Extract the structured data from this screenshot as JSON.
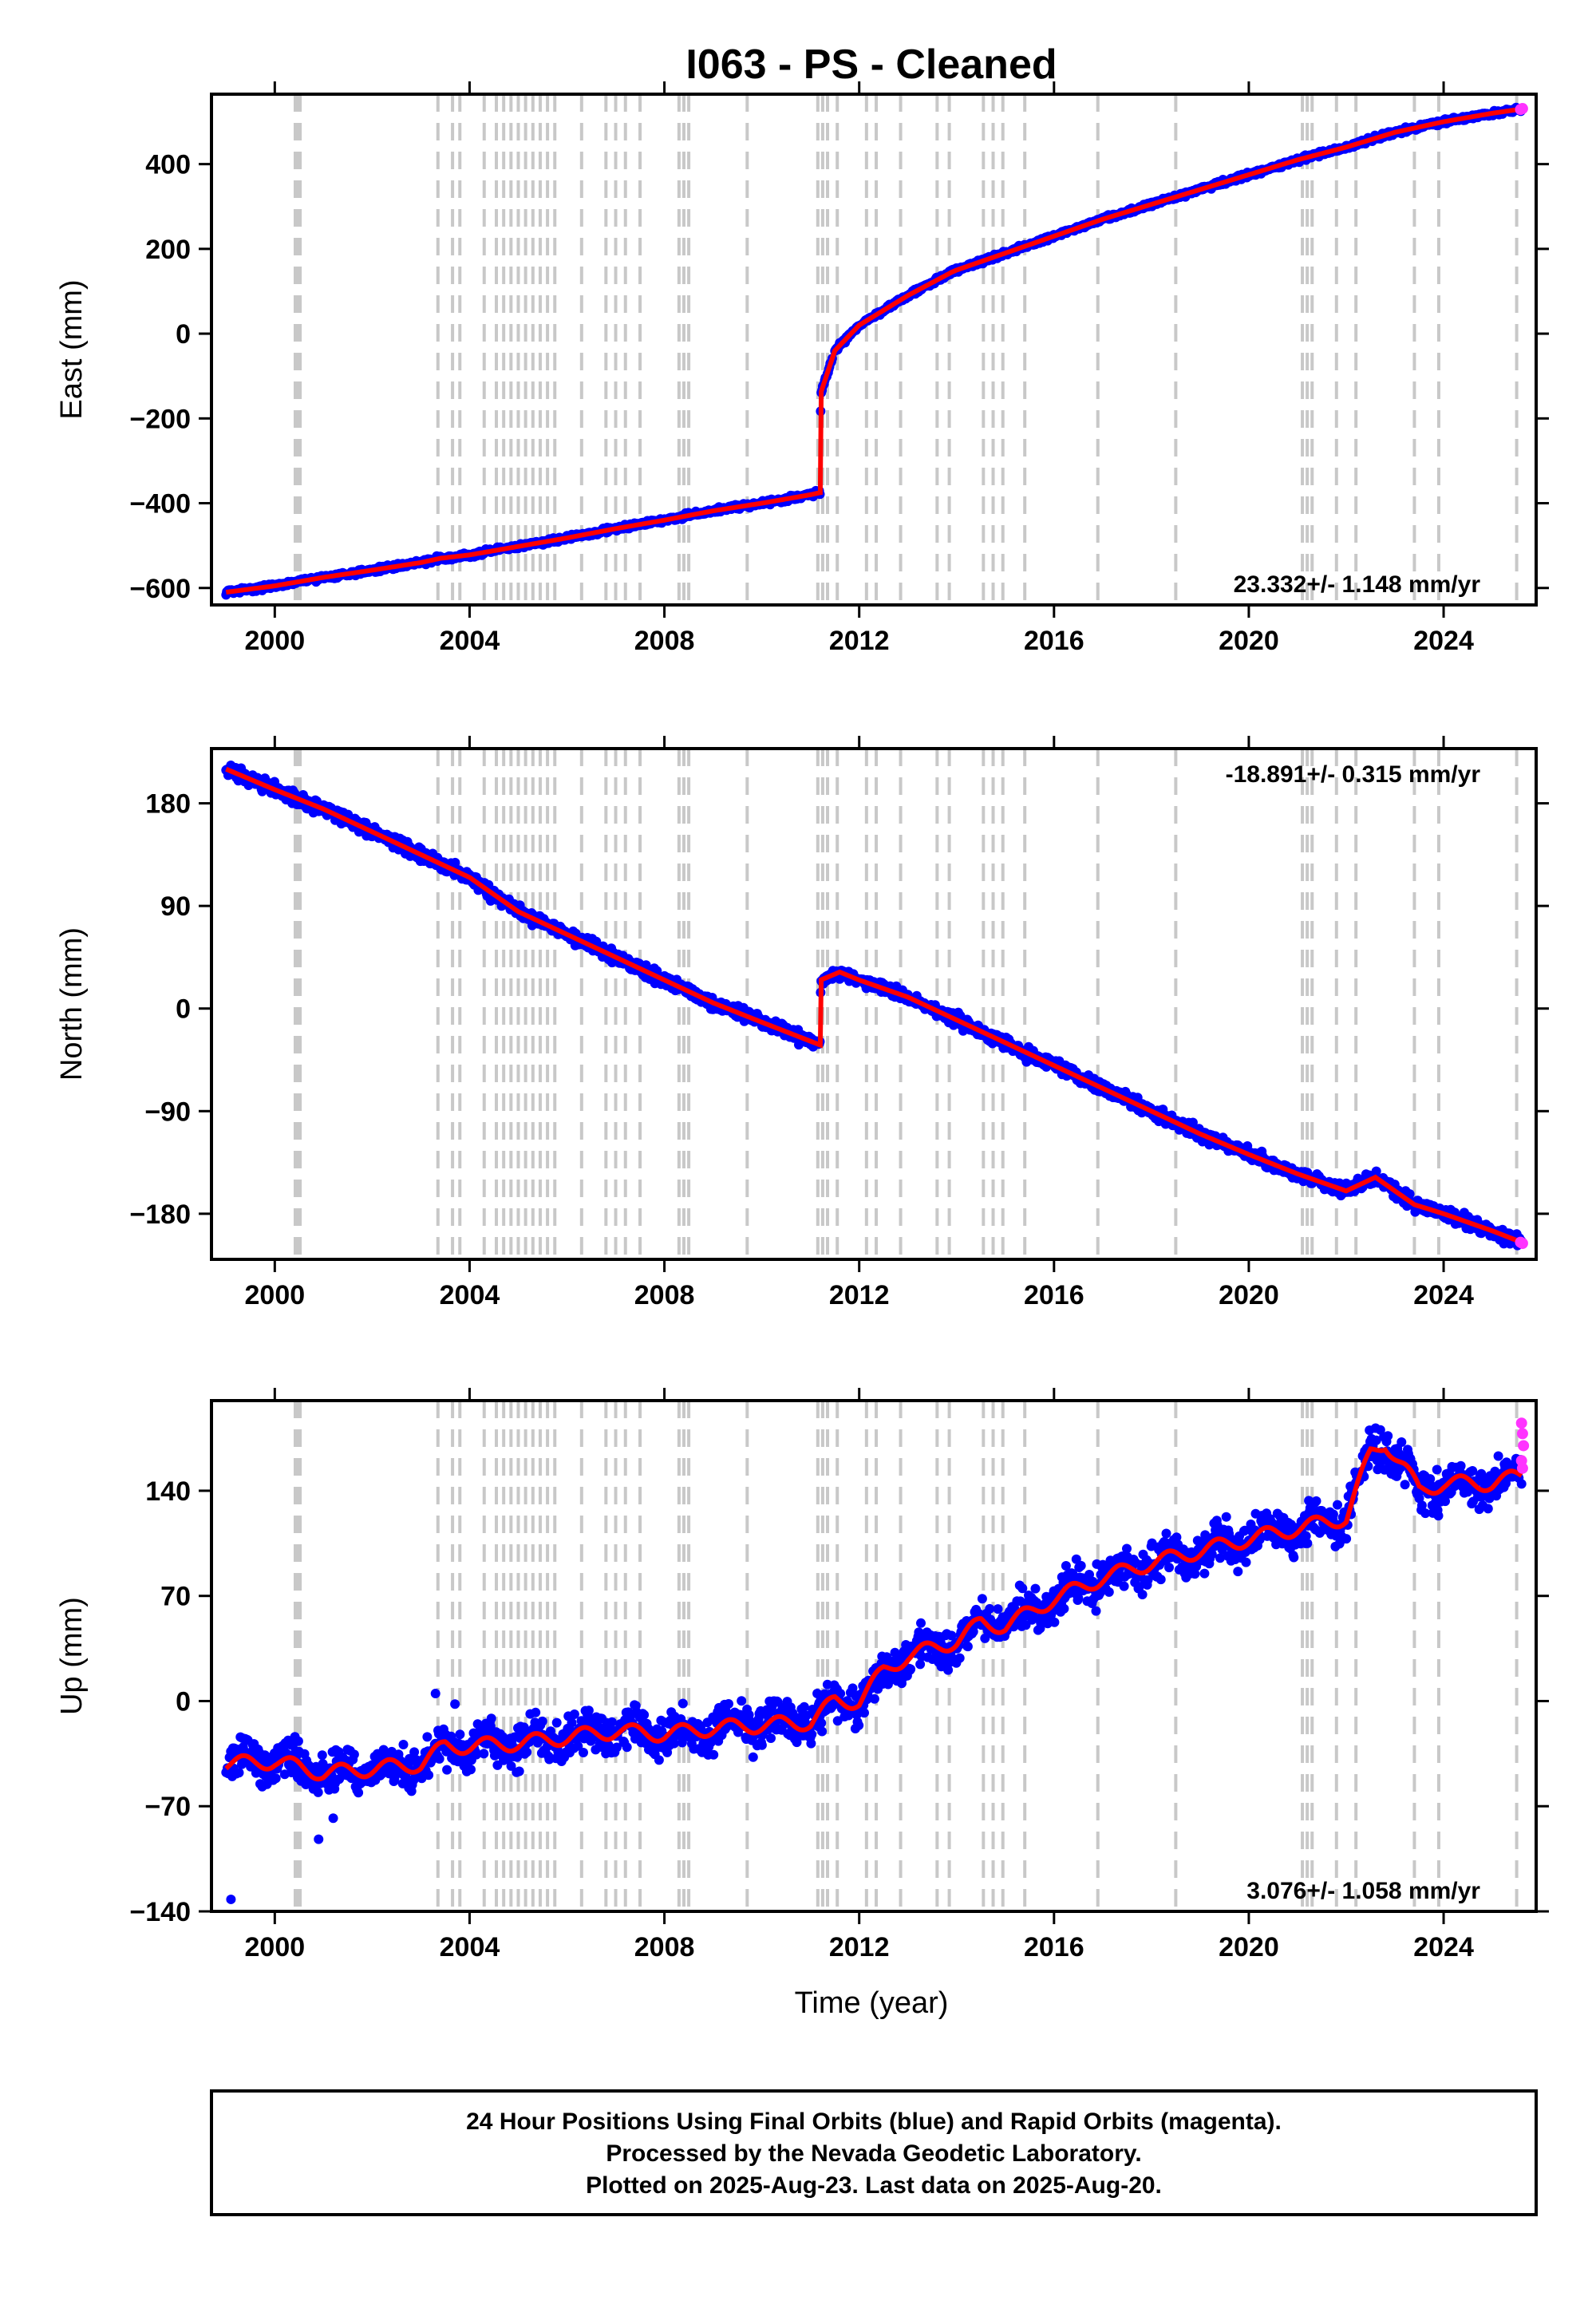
{
  "title": "I063  - PS - Cleaned",
  "xlabel": "Time (year)",
  "x_ticks": [
    2000,
    2004,
    2008,
    2012,
    2016,
    2020,
    2024
  ],
  "colors": {
    "final": "#0000ff",
    "rapid": "#ff33ff",
    "model": "#ff0000",
    "event": "#c8c8c8"
  },
  "chart_data": [
    {
      "type": "scatter",
      "ylabel": "East (mm)",
      "xlim": [
        1998.7,
        2025.9
      ],
      "ylim": [
        -640,
        565
      ],
      "y_ticks": [
        -600,
        -400,
        -200,
        0,
        200,
        400
      ],
      "rate": "23.332+/- 1.148 mm/yr",
      "series": [
        {
          "name": "Final Orbits (blue)",
          "x": [
            1999.0,
            2000.0,
            2001.0,
            2002.0,
            2003.0,
            2003.4,
            2004.0,
            2005.0,
            2006.0,
            2007.0,
            2008.0,
            2009.0,
            2010.0,
            2011.0,
            2011.2,
            2011.21,
            2011.5,
            2012.0,
            2013.0,
            2013.9,
            2014.0,
            2015.0,
            2016.0,
            2017.0,
            2018.0,
            2019.0,
            2020.0,
            2021.0,
            2022.0,
            2023.0,
            2024.0,
            2025.0,
            2025.6
          ],
          "y": [
            -610,
            -595,
            -575,
            -558,
            -540,
            -530,
            -522,
            -502,
            -482,
            -460,
            -440,
            -418,
            -400,
            -380,
            -375,
            -140,
            -40,
            20,
            90,
            145,
            150,
            190,
            230,
            270,
            305,
            340,
            375,
            410,
            440,
            475,
            500,
            520,
            530
          ]
        },
        {
          "name": "Rapid Orbits (magenta)",
          "x": [
            2025.58,
            2025.62
          ],
          "y": [
            529,
            531
          ]
        }
      ]
    },
    {
      "type": "scatter",
      "ylabel": "North (mm)",
      "xlim": [
        1998.7,
        2025.9
      ],
      "ylim": [
        -220,
        228
      ],
      "y_ticks": [
        -180,
        -90,
        0,
        90,
        180
      ],
      "rate": "-18.891+/- 0.315 mm/yr",
      "series": [
        {
          "name": "Final Orbits (blue)",
          "x": [
            1999.0,
            2000.0,
            2001.0,
            2002.0,
            2003.0,
            2004.0,
            2005.0,
            2006.0,
            2007.0,
            2008.0,
            2009.0,
            2010.0,
            2011.2,
            2011.21,
            2011.6,
            2012.0,
            2013.0,
            2014.0,
            2015.0,
            2016.0,
            2017.0,
            2018.0,
            2019.0,
            2020.0,
            2021.0,
            2022.0,
            2022.6,
            2023.0,
            2023.4,
            2024.0,
            2025.0,
            2025.6
          ],
          "y": [
            210,
            192,
            175,
            155,
            135,
            115,
            85,
            65,
            45,
            25,
            5,
            -12,
            -32,
            25,
            32,
            25,
            10,
            -10,
            -30,
            -50,
            -70,
            -90,
            -110,
            -128,
            -145,
            -160,
            -148,
            -160,
            -172,
            -180,
            -195,
            -205
          ]
        },
        {
          "name": "Rapid Orbits (magenta)",
          "x": [
            2025.58,
            2025.62
          ],
          "y": [
            -205,
            -206
          ]
        }
      ]
    },
    {
      "type": "scatter",
      "ylabel": "Up (mm)",
      "xlim": [
        1998.7,
        2025.9
      ],
      "ylim": [
        -140,
        200
      ],
      "y_ticks": [
        -140,
        -70,
        0,
        70,
        140
      ],
      "rate": "3.076+/- 1.058 mm/yr",
      "series": [
        {
          "name": "Final Orbits (blue)",
          "x": [
            1999.0,
            2000.0,
            2001.0,
            2002.0,
            2003.0,
            2003.5,
            2004.0,
            2005.0,
            2006.0,
            2007.0,
            2008.0,
            2009.0,
            2010.0,
            2011.0,
            2011.5,
            2012.0,
            2012.5,
            2013.0,
            2013.5,
            2014.0,
            2014.5,
            2015.0,
            2016.0,
            2017.0,
            2018.0,
            2019.0,
            2020.0,
            2021.0,
            2022.0,
            2022.5,
            2022.8,
            2023.2,
            2023.5,
            2024.0,
            2025.0,
            2025.6
          ],
          "y": [
            -42,
            -40,
            -48,
            -45,
            -42,
            -30,
            -30,
            -28,
            -24,
            -20,
            -22,
            -18,
            -16,
            -14,
            0,
            0,
            20,
            30,
            35,
            40,
            52,
            50,
            68,
            82,
            92,
            100,
            108,
            115,
            122,
            165,
            172,
            155,
            140,
            145,
            145,
            150
          ]
        },
        {
          "name": "Rapid Orbits (magenta)",
          "x": [
            2025.6,
            2025.62,
            2025.64,
            2025.6,
            2025.62
          ],
          "y": [
            185,
            178,
            170,
            160,
            155
          ]
        }
      ]
    }
  ],
  "event_years": [
    2000.42,
    2000.47,
    2000.52,
    2003.35,
    2003.65,
    2003.8,
    2004.3,
    2004.55,
    2004.7,
    2004.85,
    2005.0,
    2005.15,
    2005.3,
    2005.45,
    2005.6,
    2005.75,
    2006.3,
    2006.8,
    2007.0,
    2007.2,
    2007.5,
    2008.3,
    2008.4,
    2008.5,
    2009.7,
    2011.15,
    2011.25,
    2011.35,
    2011.55,
    2012.15,
    2012.35,
    2012.85,
    2013.6,
    2013.85,
    2014.55,
    2014.75,
    2014.95,
    2015.4,
    2016.9,
    2018.5,
    2021.1,
    2021.2,
    2021.3,
    2021.8,
    2022.2,
    2023.4,
    2023.9,
    2025.5
  ],
  "footer": [
    "24 Hour Positions Using Final Orbits (blue) and Rapid Orbits (magenta).",
    "Processed by the Nevada Geodetic Laboratory.",
    "Plotted on 2025-Aug-23. Last data on 2025-Aug-20."
  ]
}
